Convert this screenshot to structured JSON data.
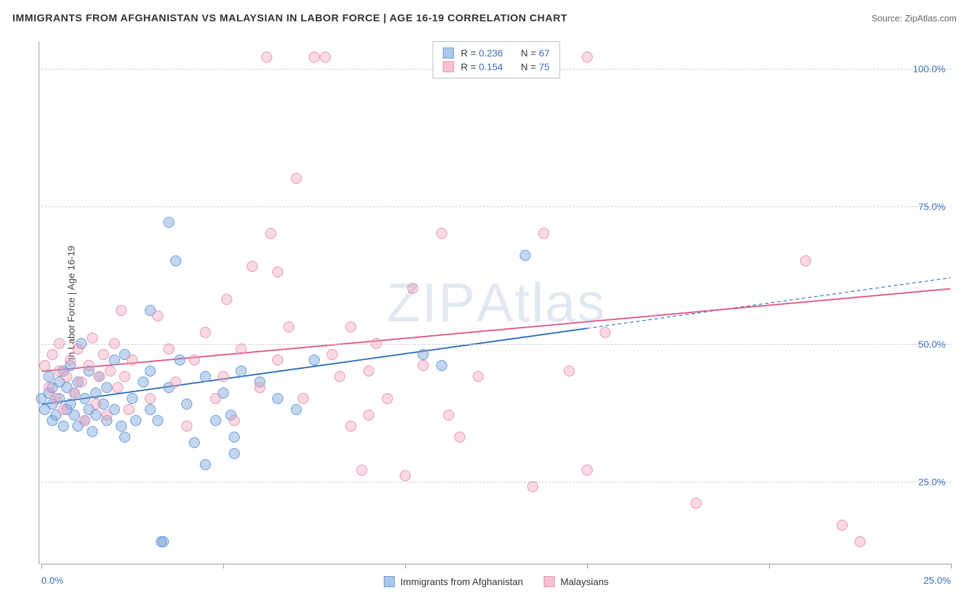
{
  "title": "IMMIGRANTS FROM AFGHANISTAN VS MALAYSIAN IN LABOR FORCE | AGE 16-19 CORRELATION CHART",
  "source": "Source: ZipAtlas.com",
  "watermark": "ZIPAtlas",
  "y_axis_label": "In Labor Force | Age 16-19",
  "chart": {
    "type": "scatter",
    "xlim": [
      0,
      25
    ],
    "ylim": [
      10,
      105
    ],
    "x_ticks": [
      0,
      25
    ],
    "x_tick_labels": [
      "0.0%",
      "25.0%"
    ],
    "y_ticks": [
      25,
      50,
      75,
      100
    ],
    "y_tick_labels": [
      "25.0%",
      "50.0%",
      "75.0%",
      "100.0%"
    ],
    "background_color": "#ffffff",
    "grid_color": "#cccccc",
    "grid_dash": "4,3",
    "axis_color": "#999999",
    "marker_radius": 8,
    "marker_stroke_width": 1.5,
    "series": [
      {
        "name": "Immigrants from Afghanistan",
        "fill_color": "rgba(120,165,220,0.45)",
        "stroke_color": "#6a9bd8",
        "swatch_fill": "#a9c7ea",
        "swatch_stroke": "#6a9bd8",
        "r": "0.236",
        "n": "67",
        "trend": {
          "x1": 0,
          "y1": 39,
          "x2": 25,
          "y2": 62,
          "solid_until_x": 15,
          "color": "#2f6fc0",
          "width": 2
        },
        "points": [
          [
            0.0,
            40
          ],
          [
            0.1,
            38
          ],
          [
            0.2,
            44
          ],
          [
            0.2,
            41
          ],
          [
            0.3,
            36
          ],
          [
            0.3,
            42
          ],
          [
            0.3,
            39
          ],
          [
            0.4,
            37
          ],
          [
            0.5,
            43
          ],
          [
            0.5,
            40
          ],
          [
            0.6,
            45
          ],
          [
            0.6,
            35
          ],
          [
            0.7,
            38
          ],
          [
            0.7,
            42
          ],
          [
            0.8,
            46
          ],
          [
            0.8,
            39
          ],
          [
            0.9,
            37
          ],
          [
            0.9,
            41
          ],
          [
            1.0,
            35
          ],
          [
            1.0,
            43
          ],
          [
            1.1,
            50
          ],
          [
            1.2,
            36
          ],
          [
            1.2,
            40
          ],
          [
            1.3,
            38
          ],
          [
            1.3,
            45
          ],
          [
            1.4,
            34
          ],
          [
            1.5,
            37
          ],
          [
            1.5,
            41
          ],
          [
            1.6,
            44
          ],
          [
            1.7,
            39
          ],
          [
            1.8,
            36
          ],
          [
            1.8,
            42
          ],
          [
            2.0,
            47
          ],
          [
            2.0,
            38
          ],
          [
            2.2,
            35
          ],
          [
            2.3,
            33
          ],
          [
            2.3,
            48
          ],
          [
            2.5,
            40
          ],
          [
            2.6,
            36
          ],
          [
            2.8,
            43
          ],
          [
            3.0,
            56
          ],
          [
            3.0,
            45
          ],
          [
            3.0,
            38
          ],
          [
            3.2,
            36
          ],
          [
            3.3,
            14
          ],
          [
            3.35,
            14
          ],
          [
            3.5,
            72
          ],
          [
            3.5,
            42
          ],
          [
            3.7,
            65
          ],
          [
            3.8,
            47
          ],
          [
            4.0,
            39
          ],
          [
            4.2,
            32
          ],
          [
            4.5,
            28
          ],
          [
            4.5,
            44
          ],
          [
            4.8,
            36
          ],
          [
            5.0,
            41
          ],
          [
            5.2,
            37
          ],
          [
            5.3,
            33
          ],
          [
            5.3,
            30
          ],
          [
            5.5,
            45
          ],
          [
            6.0,
            43
          ],
          [
            6.5,
            40
          ],
          [
            7.0,
            38
          ],
          [
            7.5,
            47
          ],
          [
            10.5,
            48
          ],
          [
            11.0,
            46
          ],
          [
            13.3,
            66
          ]
        ]
      },
      {
        "name": "Malaysians",
        "fill_color": "rgba(240,160,185,0.40)",
        "stroke_color": "#e893ad",
        "swatch_fill": "#f5c1d1",
        "swatch_stroke": "#e893ad",
        "r": "0.154",
        "n": "75",
        "trend": {
          "x1": 0,
          "y1": 45,
          "x2": 25,
          "y2": 60,
          "solid_until_x": 25,
          "color": "#e05a87",
          "width": 2
        },
        "points": [
          [
            0.1,
            46
          ],
          [
            0.2,
            42
          ],
          [
            0.3,
            48
          ],
          [
            0.4,
            40
          ],
          [
            0.5,
            45
          ],
          [
            0.5,
            50
          ],
          [
            0.6,
            38
          ],
          [
            0.7,
            44
          ],
          [
            0.8,
            47
          ],
          [
            0.9,
            41
          ],
          [
            1.0,
            49
          ],
          [
            1.1,
            43
          ],
          [
            1.2,
            36
          ],
          [
            1.3,
            46
          ],
          [
            1.4,
            51
          ],
          [
            1.5,
            39
          ],
          [
            1.6,
            44
          ],
          [
            1.7,
            48
          ],
          [
            1.8,
            37
          ],
          [
            1.9,
            45
          ],
          [
            2.0,
            50
          ],
          [
            2.1,
            42
          ],
          [
            2.2,
            56
          ],
          [
            2.3,
            44
          ],
          [
            2.4,
            38
          ],
          [
            2.5,
            47
          ],
          [
            3.0,
            40
          ],
          [
            3.2,
            55
          ],
          [
            3.5,
            49
          ],
          [
            3.7,
            43
          ],
          [
            4.0,
            35
          ],
          [
            4.2,
            47
          ],
          [
            4.5,
            52
          ],
          [
            4.8,
            40
          ],
          [
            5.0,
            44
          ],
          [
            5.1,
            58
          ],
          [
            5.3,
            36
          ],
          [
            5.5,
            49
          ],
          [
            5.8,
            64
          ],
          [
            6.0,
            42
          ],
          [
            6.2,
            102
          ],
          [
            6.3,
            70
          ],
          [
            6.5,
            63
          ],
          [
            6.5,
            47
          ],
          [
            6.8,
            53
          ],
          [
            7.0,
            80
          ],
          [
            7.2,
            40
          ],
          [
            7.5,
            102
          ],
          [
            7.8,
            102
          ],
          [
            8.0,
            48
          ],
          [
            8.2,
            44
          ],
          [
            8.5,
            35
          ],
          [
            8.8,
            27
          ],
          [
            9.0,
            37
          ],
          [
            9.2,
            50
          ],
          [
            9.5,
            40
          ],
          [
            10.0,
            26
          ],
          [
            10.2,
            60
          ],
          [
            10.5,
            46
          ],
          [
            11.0,
            70
          ],
          [
            11.2,
            37
          ],
          [
            11.5,
            33
          ],
          [
            12.0,
            44
          ],
          [
            13.5,
            24
          ],
          [
            13.8,
            70
          ],
          [
            14.5,
            45
          ],
          [
            15.0,
            27
          ],
          [
            15.0,
            102
          ],
          [
            15.5,
            52
          ],
          [
            18.0,
            21
          ],
          [
            21.0,
            65
          ],
          [
            22.0,
            17
          ],
          [
            22.5,
            14
          ],
          [
            8.5,
            53
          ],
          [
            9.0,
            45
          ]
        ]
      }
    ]
  },
  "legend_top_prefix_r": "R = ",
  "legend_top_prefix_n": "N = ",
  "legend_bottom": [
    {
      "label": "Immigrants from Afghanistan",
      "series_idx": 0
    },
    {
      "label": "Malaysians",
      "series_idx": 1
    }
  ]
}
